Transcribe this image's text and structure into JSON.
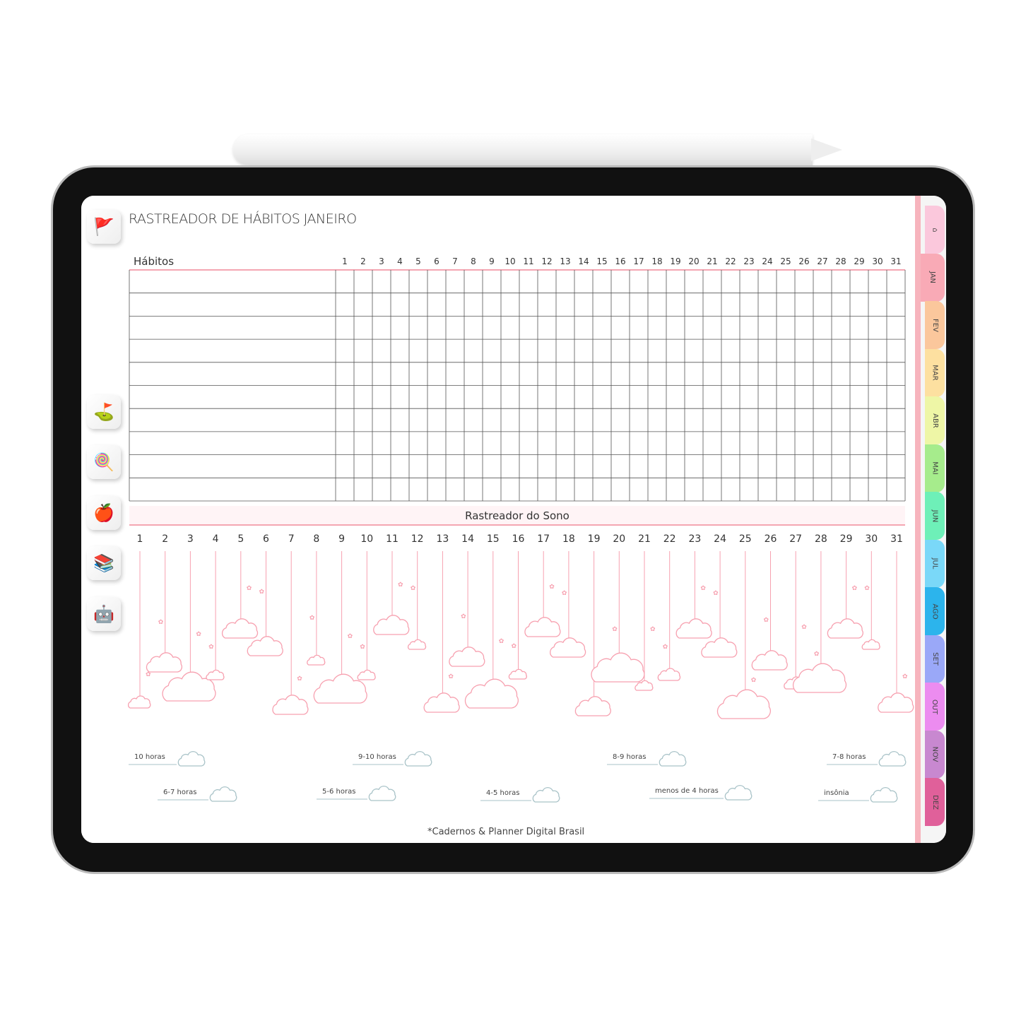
{
  "title": "RASTREADOR DE HÁBITOS JANEIRO",
  "habits": {
    "header": "Hábitos",
    "rows": 10,
    "days": [
      "1",
      "2",
      "3",
      "4",
      "5",
      "6",
      "7",
      "8",
      "9",
      "10",
      "11",
      "12",
      "13",
      "14",
      "15",
      "16",
      "17",
      "18",
      "19",
      "20",
      "21",
      "22",
      "23",
      "24",
      "25",
      "26",
      "27",
      "28",
      "29",
      "30",
      "31"
    ]
  },
  "sleep": {
    "title": "Rastreador do Sono",
    "days": [
      "1",
      "2",
      "3",
      "4",
      "5",
      "6",
      "7",
      "8",
      "9",
      "10",
      "11",
      "12",
      "13",
      "14",
      "15",
      "16",
      "17",
      "18",
      "19",
      "20",
      "21",
      "22",
      "23",
      "24",
      "25",
      "26",
      "27",
      "28",
      "29",
      "30",
      "31"
    ],
    "string_color": "#f7a1b0"
  },
  "legend": [
    {
      "label": "10 horas"
    },
    {
      "label": "9-10 horas"
    },
    {
      "label": "8-9 horas"
    },
    {
      "label": "7-8 horas"
    },
    {
      "label": "6-7 horas"
    },
    {
      "label": "5-6 horas"
    },
    {
      "label": "4-5 horas"
    },
    {
      "label": "menos de 4  horas"
    },
    {
      "label": "insônia"
    }
  ],
  "footer": "*Cadernos & Planner Digital Brasil",
  "sidebar": [
    {
      "icon": "flags-path-icon"
    },
    {
      "icon": "goal-flag-icon"
    },
    {
      "icon": "food-icon"
    },
    {
      "icon": "apple-tape-icon"
    },
    {
      "icon": "books-icon"
    },
    {
      "icon": "robot-icon"
    }
  ],
  "tabs": [
    {
      "label": "",
      "icon": "home-icon",
      "color": "#fbc8dc"
    },
    {
      "label": "JAN",
      "color": "#f9aab6",
      "active": true
    },
    {
      "label": "FEV",
      "color": "#fbc79c"
    },
    {
      "label": "MAR",
      "color": "#fde0a0"
    },
    {
      "label": "ABR",
      "color": "#eef6a6"
    },
    {
      "label": "MAI",
      "color": "#a6ec8c"
    },
    {
      "label": "JUN",
      "color": "#6ef0b8"
    },
    {
      "label": "JUL",
      "color": "#7ad8f8"
    },
    {
      "label": "AGO",
      "color": "#2cb4ec"
    },
    {
      "label": "SET",
      "color": "#9aa8f8"
    },
    {
      "label": "OUT",
      "color": "#ec8cf0"
    },
    {
      "label": "NOV",
      "color": "#c888d0"
    },
    {
      "label": "DEZ",
      "color": "#e0609a"
    }
  ]
}
